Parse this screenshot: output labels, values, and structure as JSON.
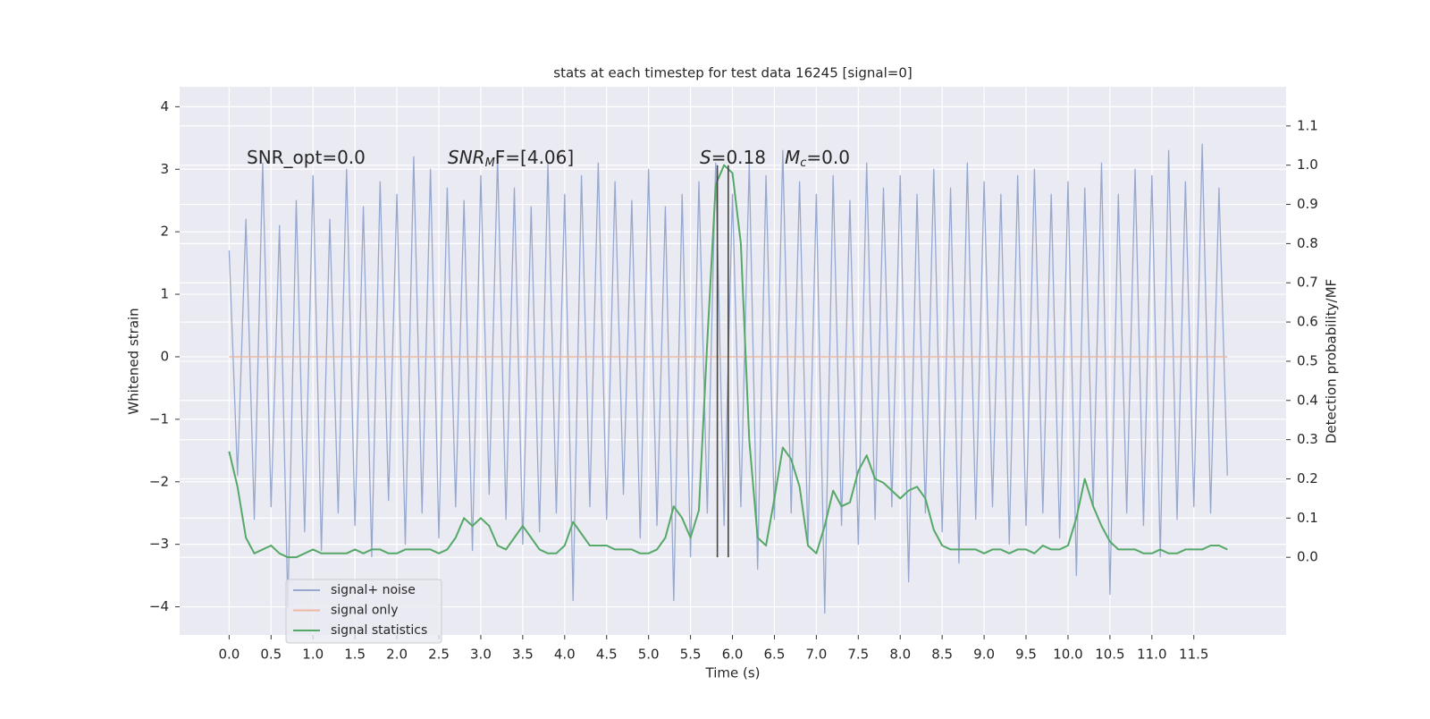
{
  "chart_data": {
    "type": "line",
    "title": "stats at each timestep for test data 16245 [signal=0]",
    "xlabel": "Time (s)",
    "ylabel": "Whitened strain",
    "y2label": "Detection probability/MF",
    "xlim": [
      -0.59,
      12.6
    ],
    "ylim": [
      -4.45,
      4.32
    ],
    "y2lim": [
      -0.198,
      1.2
    ],
    "xticks": [
      {
        "value": 0,
        "label": "0.0"
      },
      0.5,
      {
        "value": 1,
        "label": "1.0"
      },
      1.5,
      {
        "value": 2,
        "label": "2.0"
      },
      2.5,
      {
        "value": 3,
        "label": "3.0"
      },
      3.5,
      {
        "value": 4,
        "label": "4.0"
      },
      4.5,
      {
        "value": 5,
        "label": "5.0"
      },
      5.5,
      {
        "value": 6,
        "label": "6.0"
      },
      6.5,
      {
        "value": 7,
        "label": "7.0"
      },
      7.5,
      {
        "value": 8,
        "label": "8.0"
      },
      8.5,
      {
        "value": 9,
        "label": "9.0"
      },
      9.5,
      {
        "value": 10,
        "label": "10.0"
      },
      10.5,
      {
        "value": 11,
        "label": "11.0"
      },
      11.5
    ],
    "yticks": [
      {
        "value": -4,
        "label": "−4"
      },
      {
        "value": -3,
        "label": "−3"
      },
      {
        "value": -2,
        "label": "−2"
      },
      {
        "value": -1,
        "label": "−1"
      },
      0,
      1,
      2,
      3,
      4
    ],
    "y2ticks": [
      {
        "value": 0,
        "label": "0.0"
      },
      0.1,
      0.2,
      0.3,
      0.4,
      0.5,
      0.6,
      0.7,
      0.8,
      0.9,
      {
        "value": 1,
        "label": "1.0"
      },
      1.1
    ],
    "grid": true,
    "legend": "lower left",
    "x": [
      0.0,
      0.1,
      0.2,
      0.3,
      0.4,
      0.5,
      0.6,
      0.7,
      0.8,
      0.9,
      1.0,
      1.1,
      1.2,
      1.3,
      1.4,
      1.5,
      1.6,
      1.7,
      1.8,
      1.9,
      2.0,
      2.1,
      2.2,
      2.3,
      2.4,
      2.5,
      2.6,
      2.7,
      2.8,
      2.9,
      3.0,
      3.1,
      3.2,
      3.3,
      3.4,
      3.5,
      3.6,
      3.7,
      3.8,
      3.9,
      4.0,
      4.1,
      4.2,
      4.3,
      4.4,
      4.5,
      4.6,
      4.7,
      4.8,
      4.9,
      5.0,
      5.1,
      5.2,
      5.3,
      5.4,
      5.5,
      5.6,
      5.7,
      5.8,
      5.9,
      6.0,
      6.1,
      6.2,
      6.3,
      6.4,
      6.5,
      6.6,
      6.7,
      6.8,
      6.9,
      7.0,
      7.1,
      7.2,
      7.3,
      7.4,
      7.5,
      7.6,
      7.7,
      7.8,
      7.9,
      8.0,
      8.1,
      8.2,
      8.3,
      8.4,
      8.5,
      8.6,
      8.7,
      8.8,
      8.9,
      9.0,
      9.1,
      9.2,
      9.3,
      9.4,
      9.5,
      9.6,
      9.7,
      9.8,
      9.9,
      10.0,
      10.1,
      10.2,
      10.3,
      10.4,
      10.5,
      10.6,
      10.7,
      10.8,
      10.9,
      11.0,
      11.1,
      11.2,
      11.3,
      11.4,
      11.5,
      11.6,
      11.7,
      11.8,
      11.9
    ],
    "series": [
      {
        "name": "signal+ noise",
        "color": "#97a8cf",
        "values": [
          1.7,
          -1.9,
          2.2,
          -2.6,
          3.1,
          -2.4,
          2.1,
          -4.0,
          2.5,
          -2.8,
          2.9,
          -3.1,
          2.2,
          -2.5,
          3.0,
          -2.7,
          2.4,
          -3.2,
          2.8,
          -2.3,
          2.6,
          -3.0,
          3.2,
          -2.5,
          3.0,
          -2.9,
          2.7,
          -2.4,
          2.5,
          -3.1,
          2.9,
          -2.2,
          3.2,
          -2.6,
          2.7,
          -3.0,
          2.4,
          -2.8,
          3.1,
          -2.5,
          2.6,
          -3.9,
          2.9,
          -2.4,
          3.1,
          -2.6,
          2.8,
          -2.2,
          2.5,
          -2.9,
          3.0,
          -2.7,
          2.4,
          -3.9,
          2.6,
          -3.2,
          2.8,
          -2.5,
          3.1,
          -2.7,
          2.6,
          -2.4,
          3.1,
          -3.4,
          2.9,
          -2.6,
          3.3,
          -2.5,
          2.8,
          -3.0,
          2.6,
          -4.1,
          2.9,
          -2.7,
          2.5,
          -3.0,
          3.1,
          -2.6,
          2.7,
          -2.4,
          2.9,
          -3.6,
          2.6,
          -2.5,
          3.0,
          -2.8,
          2.7,
          -3.3,
          3.1,
          -2.6,
          2.8,
          -2.4,
          2.6,
          -3.0,
          2.9,
          -2.7,
          3.0,
          -2.5,
          2.6,
          -2.9,
          2.8,
          -3.5,
          2.7,
          -2.4,
          3.1,
          -3.8,
          2.6,
          -2.5,
          3.0,
          -2.7,
          2.9,
          -3.2,
          3.3,
          -2.6,
          2.8,
          -2.4,
          3.4,
          -2.5,
          2.7,
          -1.9
        ]
      },
      {
        "name": "signal only",
        "color": "#eeb8a0",
        "x": [
          0,
          11.9
        ],
        "values": [
          0,
          0
        ]
      },
      {
        "name": "signal statistics",
        "color": "#55a868",
        "axis": "y2",
        "values": [
          0.27,
          0.18,
          0.05,
          0.01,
          0.02,
          0.03,
          0.01,
          0.0,
          0.0,
          0.01,
          0.02,
          0.01,
          0.01,
          0.01,
          0.01,
          0.02,
          0.01,
          0.02,
          0.02,
          0.01,
          0.01,
          0.02,
          0.02,
          0.02,
          0.02,
          0.01,
          0.02,
          0.05,
          0.1,
          0.08,
          0.1,
          0.08,
          0.03,
          0.02,
          0.05,
          0.08,
          0.05,
          0.02,
          0.01,
          0.01,
          0.03,
          0.09,
          0.06,
          0.03,
          0.03,
          0.03,
          0.02,
          0.02,
          0.02,
          0.01,
          0.01,
          0.02,
          0.05,
          0.13,
          0.1,
          0.05,
          0.12,
          0.55,
          0.95,
          1.0,
          0.98,
          0.8,
          0.3,
          0.05,
          0.03,
          0.15,
          0.28,
          0.25,
          0.18,
          0.03,
          0.01,
          0.08,
          0.17,
          0.13,
          0.14,
          0.22,
          0.26,
          0.2,
          0.19,
          0.17,
          0.15,
          0.17,
          0.18,
          0.15,
          0.07,
          0.03,
          0.02,
          0.02,
          0.02,
          0.02,
          0.01,
          0.02,
          0.02,
          0.01,
          0.02,
          0.02,
          0.01,
          0.03,
          0.02,
          0.02,
          0.03,
          0.1,
          0.2,
          0.13,
          0.08,
          0.04,
          0.02,
          0.02,
          0.02,
          0.01,
          0.01,
          0.02,
          0.01,
          0.01,
          0.02,
          0.02,
          0.02,
          0.03,
          0.03,
          0.02
        ]
      }
    ],
    "vlines": {
      "x": [
        5.82,
        5.95
      ],
      "ymin": 0,
      "ymax": 1,
      "axis": "y2",
      "color": "#444444"
    },
    "annotations": [
      [
        "SNR_opt=0.0"
      ],
      [
        "SNR",
        "M",
        "F=[4.06]"
      ],
      [
        "S",
        "=0.18"
      ],
      [
        "M",
        "c",
        "=0.0"
      ]
    ]
  }
}
